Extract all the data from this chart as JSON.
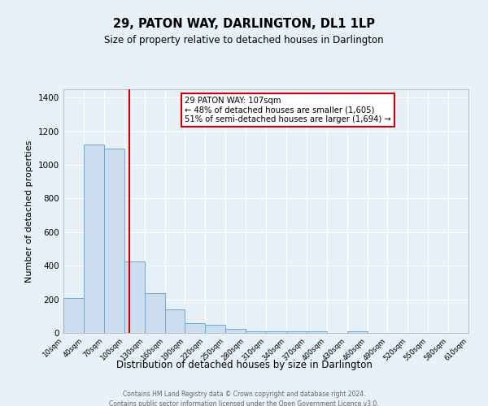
{
  "title": "29, PATON WAY, DARLINGTON, DL1 1LP",
  "subtitle": "Size of property relative to detached houses in Darlington",
  "xlabel": "Distribution of detached houses by size in Darlington",
  "ylabel": "Number of detached properties",
  "bar_color": "#ccddf0",
  "bar_edge_color": "#6aaad4",
  "background_color": "#e8f0f8",
  "grid_color": "#ffffff",
  "vline_x": 107,
  "vline_color": "#cc0000",
  "annotation_box_color": "#cc0000",
  "annotation_line1": "29 PATON WAY: 107sqm",
  "annotation_line2": "← 48% of detached houses are smaller (1,605)",
  "annotation_line3": "51% of semi-detached houses are larger (1,694) →",
  "bin_edges": [
    10,
    40,
    70,
    100,
    130,
    160,
    190,
    220,
    250,
    280,
    310,
    340,
    370,
    400,
    430,
    460,
    490,
    520,
    550,
    580,
    610
  ],
  "bar_heights": [
    210,
    1120,
    1095,
    425,
    238,
    140,
    60,
    48,
    25,
    12,
    12,
    10,
    10,
    0,
    10,
    0,
    0,
    0,
    0,
    0
  ],
  "ylim": [
    0,
    1450
  ],
  "yticks": [
    0,
    200,
    400,
    600,
    800,
    1000,
    1200,
    1400
  ],
  "footer_line1": "Contains HM Land Registry data © Crown copyright and database right 2024.",
  "footer_line2": "Contains public sector information licensed under the Open Government Licence v3.0."
}
